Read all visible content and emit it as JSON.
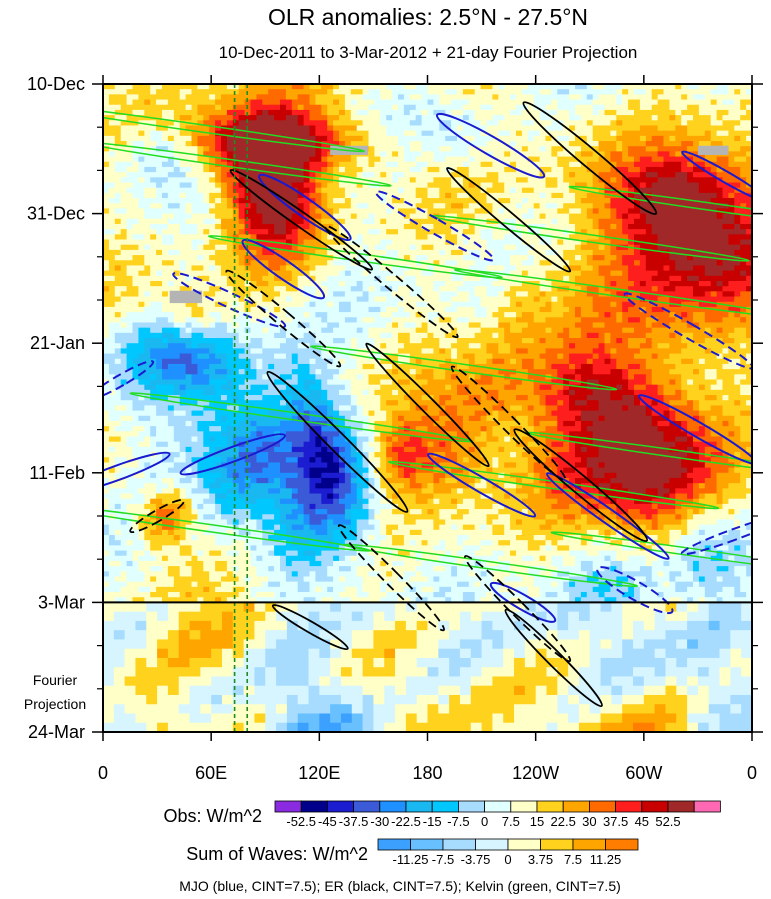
{
  "title": "OLR anomalies: 2.5°N - 27.5°N",
  "subtitle": "10-Dec-2011 to 3-Mar-2012 + 21-day Fourier Projection",
  "chart_data": {
    "type": "heatmap",
    "title": "OLR anomalies: 2.5°N - 27.5°N",
    "subtitle": "10-Dec-2011 to 3-Mar-2012 + 21-day Fourier Projection",
    "x_ticks": [
      "0",
      "60E",
      "120E",
      "180",
      "120W",
      "60W",
      "0"
    ],
    "x_tick_lon": [
      0,
      60,
      120,
      180,
      240,
      300,
      360
    ],
    "xlim": [
      0,
      360
    ],
    "y_ticks": [
      "10-Dec",
      "31-Dec",
      "21-Jan",
      "11-Feb",
      "3-Mar",
      "24-Mar"
    ],
    "y_tick_day": [
      0,
      21,
      42,
      63,
      84,
      105
    ],
    "ylim_days": [
      0,
      105
    ],
    "y_axis_direction": "time increases downward",
    "projection_start": "3-Mar",
    "projection_label": [
      "Fourier",
      "Projection"
    ],
    "reference_lines_lon": [
      73,
      80
    ],
    "obs_colorbar": {
      "label": "Obs: W/m^2",
      "levels": [
        "-52.5",
        "-45",
        "-37.5",
        "-30",
        "-22.5",
        "-15",
        "-7.5",
        "0",
        "7.5",
        "15",
        "22.5",
        "30",
        "37.5",
        "45",
        "52.5"
      ],
      "colors": [
        "#8a2be2",
        "#00008b",
        "#1c1cd0",
        "#3a5ad8",
        "#1e90ff",
        "#1ab8f0",
        "#00c8ff",
        "#a8dcff",
        "#e0ffff",
        "#ffffc8",
        "#ffd21e",
        "#ffa500",
        "#ff6a00",
        "#ff1e1e",
        "#c80000",
        "#a02828",
        "#ff69b4"
      ]
    },
    "waves_colorbar": {
      "label": "Sum of Waves: W/m^2",
      "levels": [
        "-11.25",
        "-7.5",
        "-3.75",
        "0",
        "3.75",
        "7.5",
        "11.25"
      ],
      "colors": [
        "#3ca0ff",
        "#68c0ff",
        "#a8dcff",
        "#d6f5ff",
        "#ffffc8",
        "#ffd21e",
        "#ffa500",
        "#ff7d00"
      ]
    },
    "contours_caption": "MJO (blue, CINT=7.5); ER (black, CINT=7.5); Kelvin (green, CINT=7.5)",
    "contour_colors": {
      "mjo": "#1a1ad0",
      "er": "#000000",
      "kelvin": "#22dd22"
    }
  }
}
